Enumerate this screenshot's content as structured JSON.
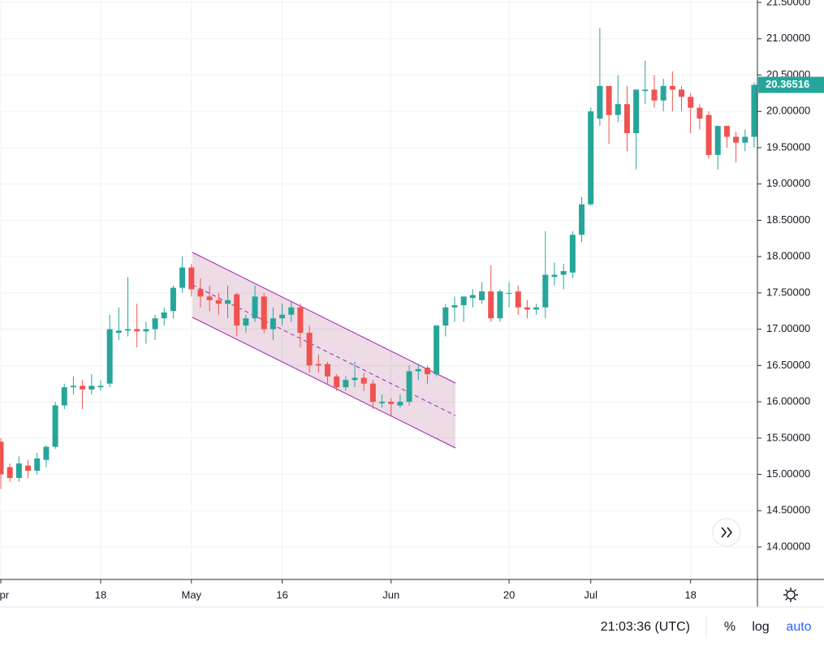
{
  "chart_data": {
    "type": "candlestick",
    "categories": [
      "Apr",
      null,
      null,
      null,
      null,
      null,
      null,
      null,
      null,
      null,
      null,
      "18",
      null,
      null,
      null,
      null,
      null,
      null,
      null,
      null,
      null,
      "May",
      null,
      null,
      null,
      null,
      null,
      null,
      null,
      null,
      null,
      "16",
      null,
      null,
      null,
      null,
      null,
      null,
      null,
      null,
      null,
      null,
      null,
      "Jun",
      null,
      null,
      null,
      null,
      null,
      null,
      null,
      null,
      null,
      null,
      null,
      null,
      "20",
      null,
      null,
      null,
      null,
      null,
      null,
      null,
      null,
      "Jul",
      null,
      null,
      null,
      null,
      null,
      null,
      null,
      null,
      null,
      null,
      "18",
      null,
      null,
      null,
      null,
      null,
      null,
      null
    ],
    "open": [
      15.45,
      15.1,
      14.95,
      15.12,
      15.05,
      15.2,
      15.38,
      15.95,
      16.2,
      16.22,
      16.17,
      16.2,
      16.25,
      16.95,
      16.98,
      17.0,
      16.97,
      17.0,
      17.15,
      17.25,
      17.57,
      17.85,
      17.55,
      17.45,
      17.4,
      17.35,
      17.48,
      17.05,
      17.15,
      17.45,
      17.0,
      17.15,
      17.2,
      17.3,
      16.95,
      16.52,
      16.52,
      16.35,
      16.2,
      16.3,
      16.33,
      16.25,
      15.98,
      16.0,
      15.95,
      16.0,
      16.42,
      16.47,
      16.38,
      17.05,
      17.3,
      17.33,
      17.43,
      17.4,
      17.52,
      17.15,
      17.5,
      17.52,
      17.3,
      17.27,
      17.3,
      17.72,
      17.75,
      17.78,
      18.3,
      18.72,
      19.9,
      20.35,
      19.95,
      20.1,
      19.7,
      20.28,
      20.3,
      20.15,
      20.35,
      20.3,
      20.2,
      20.05,
      19.95,
      19.4,
      19.8,
      19.65,
      19.57,
      19.65
    ],
    "high": [
      15.5,
      15.15,
      15.25,
      15.2,
      15.3,
      15.4,
      16.0,
      16.25,
      16.35,
      16.3,
      16.38,
      16.3,
      17.2,
      17.3,
      17.72,
      17.35,
      17.1,
      17.2,
      17.3,
      17.6,
      18.0,
      17.9,
      17.7,
      17.6,
      17.5,
      17.6,
      17.5,
      17.2,
      17.6,
      17.5,
      17.3,
      17.35,
      17.38,
      17.35,
      17.05,
      16.65,
      16.55,
      16.38,
      16.35,
      16.55,
      16.4,
      16.3,
      16.1,
      16.05,
      16.1,
      16.5,
      16.52,
      16.5,
      17.05,
      17.35,
      17.45,
      17.45,
      17.55,
      17.65,
      17.88,
      17.55,
      17.65,
      17.6,
      17.4,
      17.35,
      18.35,
      17.92,
      17.9,
      18.35,
      18.82,
      20.05,
      21.15,
      20.35,
      20.5,
      20.35,
      20.3,
      20.7,
      20.5,
      20.45,
      20.55,
      20.35,
      20.25,
      20.1,
      20.0,
      19.8,
      19.8,
      19.72,
      19.75,
      20.4
    ],
    "low": [
      14.8,
      14.9,
      14.9,
      14.95,
      15.0,
      15.1,
      15.35,
      15.9,
      16.1,
      15.9,
      16.1,
      16.15,
      16.2,
      16.85,
      16.9,
      16.75,
      16.8,
      16.85,
      17.05,
      17.15,
      17.5,
      17.45,
      17.3,
      17.25,
      17.2,
      17.15,
      16.9,
      16.95,
      17.1,
      16.95,
      16.85,
      17.05,
      17.1,
      16.75,
      16.4,
      16.4,
      16.25,
      16.15,
      16.15,
      16.2,
      16.15,
      15.9,
      15.92,
      15.8,
      15.92,
      15.95,
      16.3,
      16.25,
      16.35,
      16.9,
      17.1,
      17.1,
      17.3,
      17.35,
      17.1,
      17.1,
      17.3,
      17.2,
      17.15,
      17.2,
      17.15,
      17.6,
      17.55,
      17.7,
      18.2,
      18.7,
      19.8,
      19.55,
      19.85,
      19.45,
      19.2,
      20.1,
      20.05,
      20.0,
      20.0,
      20.0,
      19.7,
      19.75,
      19.35,
      19.2,
      19.5,
      19.3,
      19.45,
      19.5
    ],
    "close": [
      15.0,
      14.95,
      15.15,
      15.05,
      15.22,
      15.38,
      15.95,
      16.2,
      16.22,
      16.17,
      16.22,
      16.22,
      17.0,
      16.98,
      17.0,
      16.97,
      17.0,
      17.15,
      17.23,
      17.57,
      17.85,
      17.55,
      17.45,
      17.4,
      17.35,
      17.4,
      17.05,
      17.15,
      17.45,
      17.0,
      17.15,
      17.2,
      17.3,
      16.95,
      16.5,
      16.5,
      16.35,
      16.2,
      16.3,
      16.33,
      16.25,
      16.0,
      16.0,
      15.97,
      16.0,
      16.42,
      16.45,
      16.38,
      17.05,
      17.3,
      17.33,
      17.45,
      17.47,
      17.52,
      17.15,
      17.52,
      17.5,
      17.3,
      17.27,
      17.3,
      17.75,
      17.75,
      17.8,
      18.3,
      18.72,
      20.0,
      20.35,
      19.95,
      20.1,
      19.7,
      20.3,
      20.3,
      20.15,
      20.35,
      20.3,
      20.2,
      20.05,
      19.9,
      19.4,
      19.8,
      19.65,
      19.57,
      19.65,
      20.36516
    ],
    "up_color": "#26a69a",
    "down_color": "#ef5350",
    "ylim": [
      13.553,
      21.534
    ],
    "yticks": [
      {
        "value": 14,
        "label": "14.00000"
      },
      {
        "value": 14.5,
        "label": "14.50000"
      },
      {
        "value": 15,
        "label": "15.00000"
      },
      {
        "value": 15.5,
        "label": "15.50000"
      },
      {
        "value": 16,
        "label": "16.00000"
      },
      {
        "value": 16.5,
        "label": "16.50000"
      },
      {
        "value": 17,
        "label": "17.00000"
      },
      {
        "value": 17.5,
        "label": "17.50000"
      },
      {
        "value": 18,
        "label": "18.00000"
      },
      {
        "value": 18.5,
        "label": "18.50000"
      },
      {
        "value": 19,
        "label": "19.00000"
      },
      {
        "value": 19.5,
        "label": "19.50000"
      },
      {
        "value": 20,
        "label": "20.00000"
      },
      {
        "value": 20.5,
        "label": "20.50000"
      },
      {
        "value": 21,
        "label": "21.00000"
      },
      {
        "value": 21.5,
        "label": "21.50000"
      }
    ],
    "grid": true
  },
  "toolbar": {
    "time": "21:03:36 (UTC)",
    "percent": "%",
    "log": "log",
    "auto": "auto"
  }
}
